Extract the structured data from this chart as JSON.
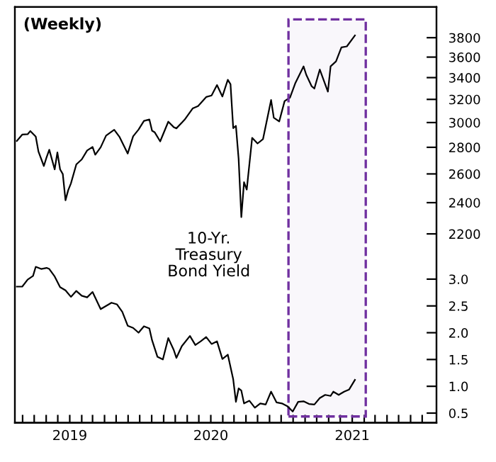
{
  "chart_data": {
    "type": "line",
    "title": "(Weekly)",
    "annotations": [
      "10-Yr.\nTreasury\nBond Yield"
    ],
    "series": [
      {
        "color": "#000000",
        "x": [
          "2018-08-17",
          "2018-08-31",
          "2018-09-14",
          "2018-09-21",
          "2018-10-05",
          "2018-10-12",
          "2018-10-26",
          "2018-11-02",
          "2018-11-09",
          "2018-11-23",
          "2018-11-30",
          "2018-12-07",
          "2018-12-14",
          "2018-12-21",
          "2018-12-28",
          "2019-01-04",
          "2019-01-18",
          "2019-02-01",
          "2019-02-15",
          "2019-03-01",
          "2019-03-08",
          "2019-03-22",
          "2019-04-05",
          "2019-04-26",
          "2019-05-10",
          "2019-05-31",
          "2019-06-14",
          "2019-06-28",
          "2019-07-12",
          "2019-07-26",
          "2019-08-02",
          "2019-08-09",
          "2019-08-23",
          "2019-09-13",
          "2019-09-27",
          "2019-10-04",
          "2019-10-25",
          "2019-11-15",
          "2019-11-29",
          "2019-12-20",
          "2020-01-03",
          "2020-01-17",
          "2020-01-31",
          "2020-02-14",
          "2020-02-21",
          "2020-02-28",
          "2020-03-06",
          "2020-03-13",
          "2020-03-20",
          "2020-03-27",
          "2020-04-03",
          "2020-04-17",
          "2020-05-01",
          "2020-05-15",
          "2020-06-05",
          "2020-06-12",
          "2020-06-26",
          "2020-07-10",
          "2020-07-24",
          "2020-08-07",
          "2020-08-28",
          "2020-09-04",
          "2020-09-18",
          "2020-09-25",
          "2020-10-09",
          "2020-10-30",
          "2020-11-06",
          "2020-11-20",
          "2020-12-04",
          "2020-12-18",
          "2021-01-08"
        ],
        "values": [
          2850,
          2901,
          2904,
          2930,
          2885,
          2767,
          2658,
          2723,
          2781,
          2633,
          2760,
          2633,
          2599,
          2416,
          2485,
          2532,
          2670,
          2707,
          2775,
          2803,
          2743,
          2800,
          2893,
          2940,
          2881,
          2752,
          2887,
          2942,
          3014,
          3026,
          2932,
          2919,
          2847,
          3007,
          2962,
          2952,
          3023,
          3120,
          3141,
          3221,
          3235,
          3330,
          3226,
          3380,
          3338,
          2954,
          2972,
          2711,
          2305,
          2541,
          2489,
          2875,
          2830,
          2864,
          3194,
          3041,
          3009,
          3185,
          3216,
          3351,
          3508,
          3427,
          3319,
          3298,
          3477,
          3270,
          3509,
          3557,
          3699,
          3709,
          3824
        ]
      },
      {
        "color": "#000000",
        "axis": "y2",
        "x": [
          "2018-08-17",
          "2018-08-31",
          "2018-09-14",
          "2018-09-28",
          "2018-10-05",
          "2018-10-19",
          "2018-11-02",
          "2018-11-09",
          "2018-11-23",
          "2018-12-07",
          "2018-12-21",
          "2019-01-04",
          "2019-01-18",
          "2019-02-01",
          "2019-02-15",
          "2019-03-01",
          "2019-03-22",
          "2019-04-05",
          "2019-04-19",
          "2019-05-03",
          "2019-05-17",
          "2019-05-31",
          "2019-06-14",
          "2019-06-28",
          "2019-07-12",
          "2019-07-26",
          "2019-08-02",
          "2019-08-16",
          "2019-08-30",
          "2019-09-13",
          "2019-09-27",
          "2019-10-04",
          "2019-10-18",
          "2019-11-08",
          "2019-11-22",
          "2019-12-06",
          "2019-12-20",
          "2020-01-03",
          "2020-01-17",
          "2020-01-31",
          "2020-02-14",
          "2020-02-28",
          "2020-03-06",
          "2020-03-13",
          "2020-03-20",
          "2020-03-27",
          "2020-04-10",
          "2020-04-24",
          "2020-05-08",
          "2020-05-22",
          "2020-06-05",
          "2020-06-19",
          "2020-07-03",
          "2020-07-17",
          "2020-07-31",
          "2020-08-14",
          "2020-08-28",
          "2020-09-11",
          "2020-09-25",
          "2020-10-09",
          "2020-10-23",
          "2020-11-06",
          "2020-11-13",
          "2020-11-27",
          "2020-12-11",
          "2020-12-24",
          "2021-01-08"
        ],
        "values": [
          2.86,
          2.86,
          2.99,
          3.06,
          3.23,
          3.19,
          3.21,
          3.19,
          3.05,
          2.85,
          2.79,
          2.67,
          2.78,
          2.69,
          2.66,
          2.76,
          2.44,
          2.5,
          2.56,
          2.53,
          2.39,
          2.13,
          2.09,
          2.0,
          2.12,
          2.08,
          1.86,
          1.55,
          1.5,
          1.9,
          1.68,
          1.53,
          1.75,
          1.94,
          1.77,
          1.84,
          1.92,
          1.79,
          1.84,
          1.51,
          1.59,
          1.13,
          0.71,
          0.96,
          0.92,
          0.68,
          0.73,
          0.6,
          0.68,
          0.66,
          0.9,
          0.7,
          0.68,
          0.63,
          0.53,
          0.71,
          0.72,
          0.67,
          0.66,
          0.78,
          0.84,
          0.82,
          0.9,
          0.84,
          0.9,
          0.94,
          1.12
        ]
      }
    ],
    "log": "y",
    "xlim": [
      "2018-08-12",
      "2021-08-07"
    ],
    "xticks": [
      {
        "value": "2018-09-01",
        "label": null
      },
      {
        "value": "2018-10-01",
        "label": null
      },
      {
        "value": "2018-11-01",
        "label": null
      },
      {
        "value": "2018-12-01",
        "label": null
      },
      {
        "value": "2019-01-01",
        "label": "2019"
      },
      {
        "value": "2019-02-01",
        "label": null
      },
      {
        "value": "2019-03-01",
        "label": null
      },
      {
        "value": "2019-04-01",
        "label": null
      },
      {
        "value": "2019-05-01",
        "label": null
      },
      {
        "value": "2019-06-01",
        "label": null
      },
      {
        "value": "2019-07-01",
        "label": null
      },
      {
        "value": "2019-08-01",
        "label": null
      },
      {
        "value": "2019-09-01",
        "label": null
      },
      {
        "value": "2019-10-01",
        "label": null
      },
      {
        "value": "2019-11-01",
        "label": null
      },
      {
        "value": "2019-12-01",
        "label": null
      },
      {
        "value": "2020-01-01",
        "label": "2020"
      },
      {
        "value": "2020-02-01",
        "label": null
      },
      {
        "value": "2020-03-01",
        "label": null
      },
      {
        "value": "2020-04-01",
        "label": null
      },
      {
        "value": "2020-05-01",
        "label": null
      },
      {
        "value": "2020-06-01",
        "label": null
      },
      {
        "value": "2020-07-01",
        "label": null
      },
      {
        "value": "2020-08-01",
        "label": null
      },
      {
        "value": "2020-09-01",
        "label": null
      },
      {
        "value": "2020-10-01",
        "label": null
      },
      {
        "value": "2020-11-01",
        "label": null
      },
      {
        "value": "2020-12-01",
        "label": null
      },
      {
        "value": "2021-01-01",
        "label": "2021"
      },
      {
        "value": "2021-02-01",
        "label": null
      },
      {
        "value": "2021-03-01",
        "label": null
      },
      {
        "value": "2021-04-01",
        "label": null
      },
      {
        "value": "2021-05-01",
        "label": null
      },
      {
        "value": "2021-06-01",
        "label": null
      },
      {
        "value": "2021-07-01",
        "label": null
      }
    ],
    "ylim": [
      1300,
      4140
    ],
    "yticks": [
      2200,
      2400,
      2600,
      2800,
      3000,
      3200,
      3400,
      3600,
      3800
    ],
    "y2lim": [
      0.32,
      8.08
    ],
    "y2ticks": [
      {
        "value": 0.5,
        "label": "0.5"
      },
      {
        "value": 1,
        "label": "1.0"
      },
      {
        "value": 1.5,
        "label": "1.5"
      },
      {
        "value": 2,
        "label": "2.0"
      },
      {
        "value": 2.5,
        "label": "2.5"
      },
      {
        "value": 3,
        "label": "3.0"
      }
    ],
    "bands": [
      {
        "axis": "x",
        "from": "2020-07-20",
        "to": "2021-02-05",
        "color": "#7030a0"
      }
    ],
    "grid": false
  }
}
